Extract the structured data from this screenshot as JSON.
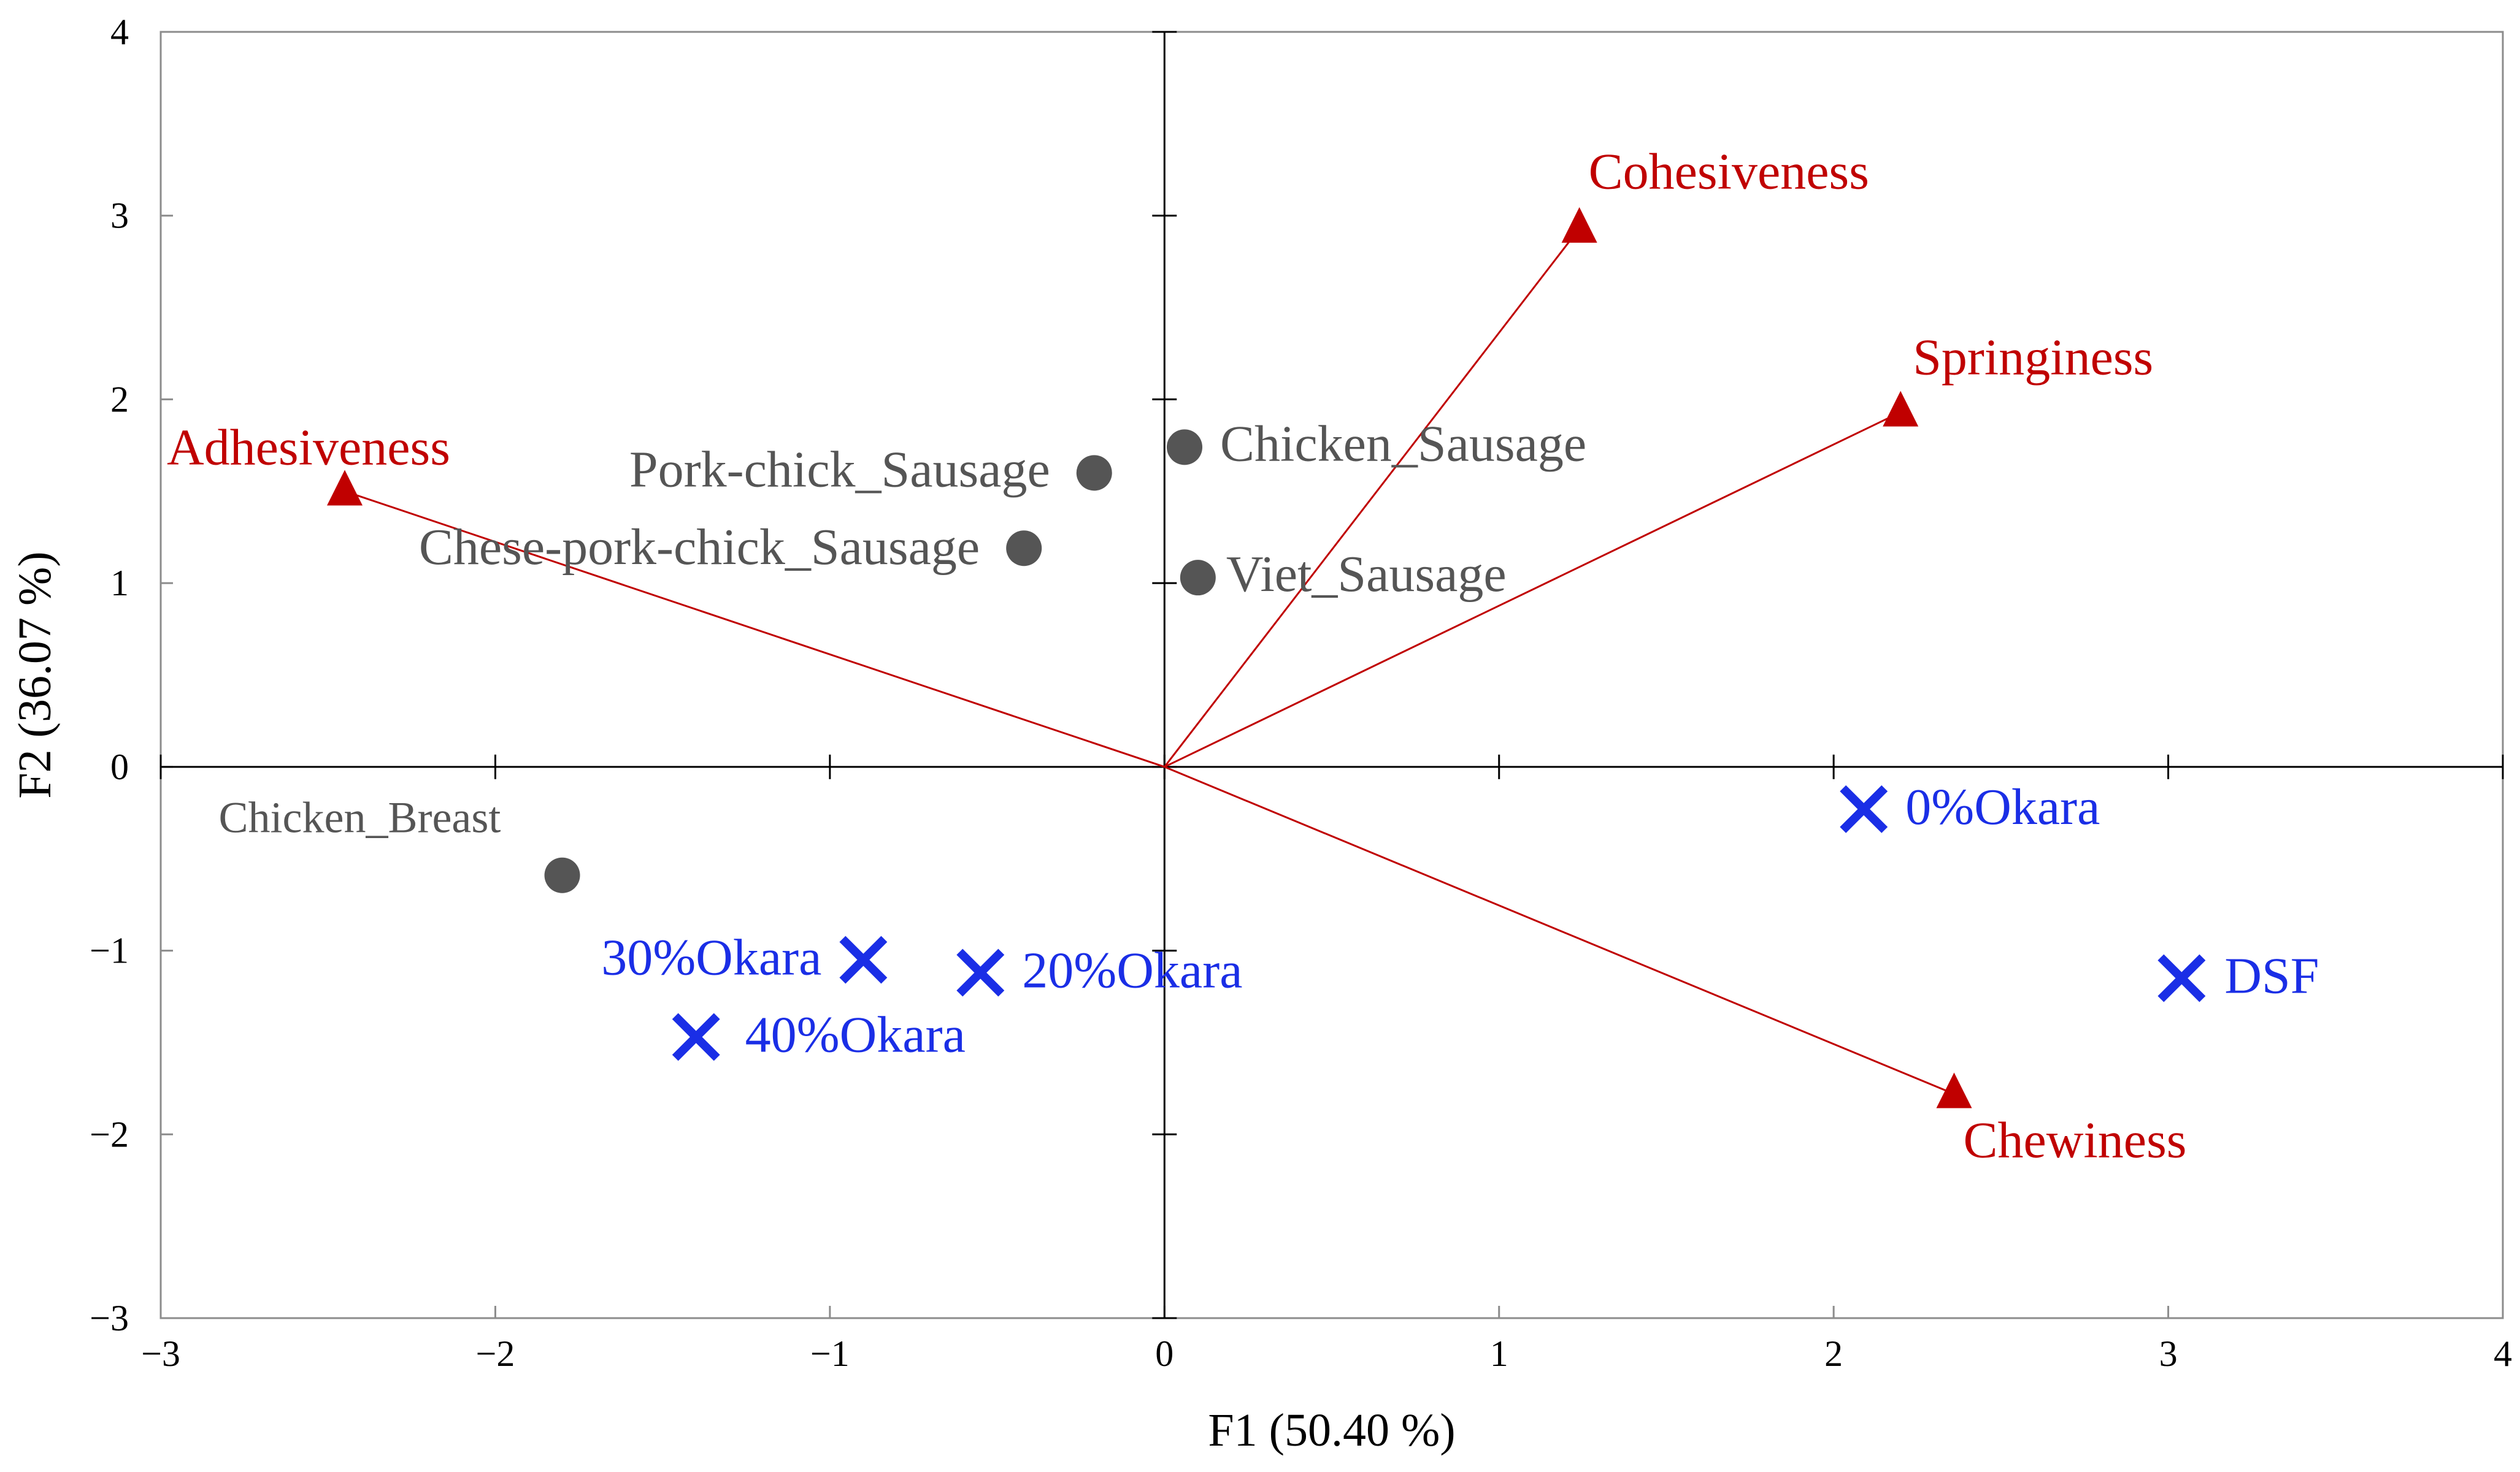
{
  "chart_data": {
    "type": "scatter",
    "title": "",
    "xlabel": "F1 (50.40 %)",
    "ylabel": "F2 (36.07 %)",
    "xlim": [
      -3,
      4
    ],
    "ylim": [
      -3,
      4
    ],
    "xticks": [
      "−3",
      "−2",
      "−1",
      "0",
      "1",
      "2",
      "3",
      "4"
    ],
    "yticks": [
      "−3",
      "−2",
      "−1",
      "0",
      "1",
      "2",
      "3",
      "4"
    ],
    "grid": false,
    "colors": {
      "variables": "#c00000",
      "observations": "#555555",
      "okara": "#1a2ee6",
      "axis": "#000000",
      "frame": "#8c8c8c"
    },
    "series": [
      {
        "name": "variables",
        "marker": "triangle",
        "vectors_from_origin": true,
        "points": [
          {
            "label": "Adhesiveness",
            "x": -2.45,
            "y": 1.5
          },
          {
            "label": "Cohesiveness",
            "x": 1.24,
            "y": 2.93
          },
          {
            "label": "Springiness",
            "x": 2.2,
            "y": 1.93
          },
          {
            "label": "Chewiness",
            "x": 2.36,
            "y": -1.78
          }
        ]
      },
      {
        "name": "observations",
        "marker": "circle",
        "points": [
          {
            "label": "Pork-chick_Sausage",
            "x": -0.21,
            "y": 1.6
          },
          {
            "label": "Chicken_Sausage",
            "x": 0.06,
            "y": 1.74
          },
          {
            "label": "Chese-pork-chick_Sausage",
            "x": -0.42,
            "y": 1.19
          },
          {
            "label": "Viet_Sausage",
            "x": 0.1,
            "y": 1.03
          },
          {
            "label": "Chicken_Breast",
            "x": -1.8,
            "y": -0.59
          }
        ]
      },
      {
        "name": "okara",
        "marker": "x",
        "points": [
          {
            "label": "0%Okara",
            "x": 2.09,
            "y": -0.23
          },
          {
            "label": "30%Okara",
            "x": -0.9,
            "y": -1.05
          },
          {
            "label": "20%Okara",
            "x": -0.55,
            "y": -1.12
          },
          {
            "label": "40%Okara",
            "x": -1.4,
            "y": -1.47
          },
          {
            "label": "DSF",
            "x": 3.04,
            "y": -1.15
          }
        ]
      }
    ]
  }
}
